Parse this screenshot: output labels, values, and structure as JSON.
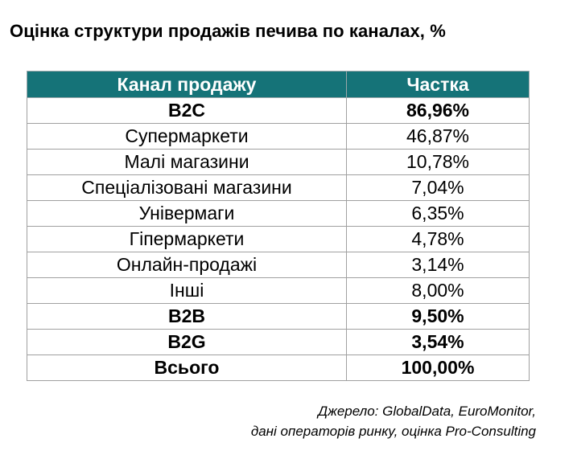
{
  "colors": {
    "header_bg": "#157378",
    "header_text": "#ffffff"
  },
  "title": "Оцінка структури продажів печива по каналах, %",
  "chart_data": {
    "type": "table",
    "columns": [
      "Канал продажу",
      "Частка"
    ],
    "rows": [
      {
        "channel": "B2C",
        "share": "86,96%",
        "bold": true
      },
      {
        "channel": "Супермаркети",
        "share": "46,87%",
        "bold": false
      },
      {
        "channel": "Малі магазини",
        "share": "10,78%",
        "bold": false
      },
      {
        "channel": "Спеціалізовані магазини",
        "share": "7,04%",
        "bold": false
      },
      {
        "channel": "Універмаги",
        "share": "6,35%",
        "bold": false
      },
      {
        "channel": "Гіпермаркети",
        "share": "4,78%",
        "bold": false
      },
      {
        "channel": "Онлайн-продажі",
        "share": "3,14%",
        "bold": false
      },
      {
        "channel": "Інші",
        "share": "8,00%",
        "bold": false
      },
      {
        "channel": "B2B",
        "share": "9,50%",
        "bold": true
      },
      {
        "channel": "B2G",
        "share": "3,54%",
        "bold": true
      },
      {
        "channel": "Всього",
        "share": "100,00%",
        "bold": true
      }
    ]
  },
  "source": {
    "line1": "Джерело: GlobalData, EuroMonitor,",
    "line2": "дані операторів ринку, оцінка Pro-Consulting"
  }
}
